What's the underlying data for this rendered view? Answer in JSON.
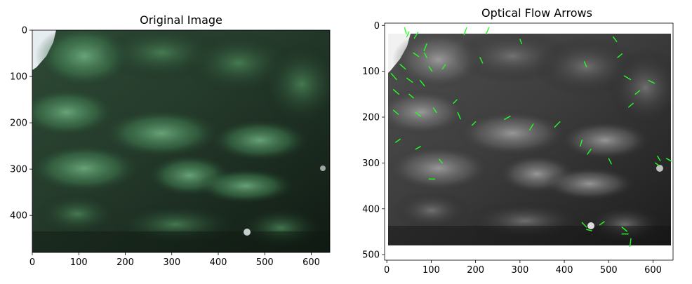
{
  "panels": [
    {
      "title": "Original Image",
      "x_ticks": [
        "0",
        "100",
        "200",
        "300",
        "400",
        "500",
        "600"
      ],
      "y_ticks": [
        "0",
        "100",
        "200",
        "300",
        "400"
      ],
      "xlim": [
        0,
        640
      ],
      "ylim": [
        480,
        0
      ]
    },
    {
      "title": "Optical Flow Arrows",
      "x_ticks": [
        "0",
        "100",
        "200",
        "300",
        "400",
        "500",
        "600"
      ],
      "y_ticks": [
        "0",
        "100",
        "200",
        "300",
        "400",
        "500"
      ],
      "xlim": [
        -5,
        645
      ],
      "ylim": [
        512,
        -5
      ]
    }
  ],
  "colors": {
    "arrow": "#22ff22",
    "foliage_light": "#5e9a6e",
    "foliage_dark": "#0f1c14"
  },
  "flow_vectors": [
    [
      40,
      5,
      44,
      18
    ],
    [
      70,
      15,
      62,
      28
    ],
    [
      90,
      40,
      84,
      55
    ],
    [
      60,
      60,
      72,
      68
    ],
    [
      30,
      85,
      42,
      95
    ],
    [
      10,
      105,
      22,
      118
    ],
    [
      45,
      115,
      58,
      124
    ],
    [
      75,
      120,
      85,
      132
    ],
    [
      15,
      140,
      27,
      150
    ],
    [
      50,
      150,
      60,
      158
    ],
    [
      95,
      90,
      102,
      100
    ],
    [
      125,
      95,
      132,
      86
    ],
    [
      180,
      5,
      174,
      20
    ],
    [
      230,
      5,
      224,
      18
    ],
    [
      210,
      70,
      216,
      82
    ],
    [
      15,
      185,
      26,
      194
    ],
    [
      65,
      190,
      76,
      198
    ],
    [
      105,
      180,
      112,
      190
    ],
    [
      160,
      190,
      166,
      204
    ],
    [
      200,
      210,
      192,
      218
    ],
    [
      265,
      205,
      278,
      198
    ],
    [
      330,
      215,
      322,
      228
    ],
    [
      390,
      210,
      378,
      222
    ],
    [
      20,
      255,
      30,
      248
    ],
    [
      65,
      270,
      76,
      264
    ],
    [
      150,
      170,
      158,
      162
    ],
    [
      125,
      300,
      118,
      292
    ],
    [
      440,
      250,
      436,
      263
    ],
    [
      460,
      270,
      452,
      281
    ],
    [
      500,
      290,
      506,
      302
    ],
    [
      610,
      285,
      616,
      295
    ],
    [
      630,
      290,
      641,
      296
    ],
    [
      555,
      170,
      545,
      178
    ],
    [
      560,
      150,
      570,
      142
    ],
    [
      535,
      110,
      549,
      118
    ],
    [
      590,
      120,
      603,
      126
    ],
    [
      510,
      25,
      518,
      35
    ],
    [
      520,
      70,
      530,
      62
    ],
    [
      450,
      90,
      445,
      79
    ],
    [
      440,
      430,
      450,
      440
    ],
    [
      450,
      445,
      462,
      448
    ],
    [
      530,
      440,
      541,
      449
    ],
    [
      530,
      455,
      544,
      455
    ],
    [
      550,
      465,
      548,
      482
    ],
    [
      480,
      435,
      490,
      428
    ],
    [
      95,
      335,
      108,
      335
    ],
    [
      605,
      300,
      614,
      306
    ],
    [
      85,
      60,
      90,
      70
    ],
    [
      45,
      25,
      50,
      14
    ],
    [
      300,
      30,
      304,
      40
    ]
  ]
}
